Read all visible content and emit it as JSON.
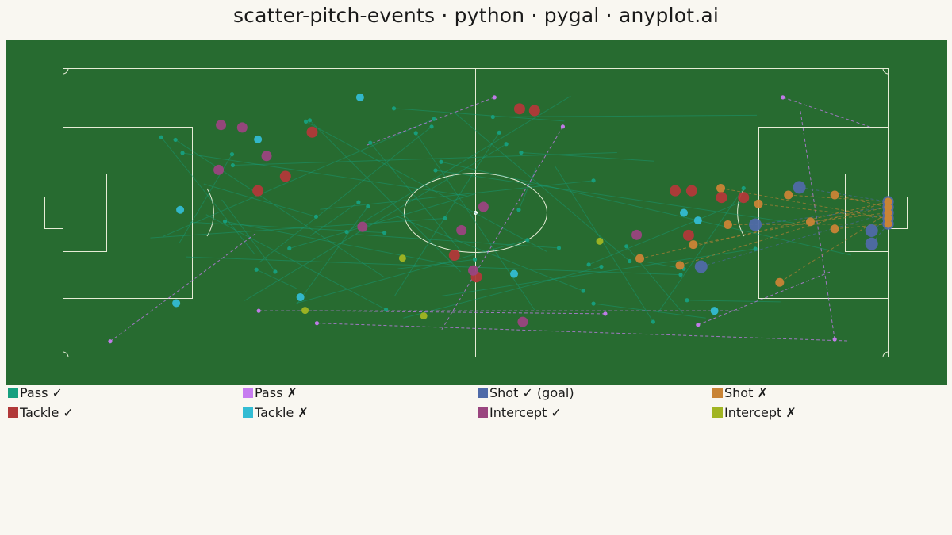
{
  "title": "scatter-pitch-events · python · pygal · anyplot.ai",
  "colors": {
    "background": "#f9f7f1",
    "pitch": "#276b30",
    "lines": "#e6ecd6"
  },
  "chart_data": {
    "type": "scatter",
    "title": "scatter-pitch-events · python · pygal · anyplot.ai",
    "xlim": [
      0,
      105
    ],
    "ylim": [
      0,
      68
    ],
    "pitch_markings": "full pitch, 105 x 68",
    "grid": false,
    "legend_placement": "bottom",
    "legend": [
      {
        "label": "Pass ✓",
        "color": "#17a07f"
      },
      {
        "label": "Pass ✗",
        "color": "#c77cf0"
      },
      {
        "label": "Shot ✓ (goal)",
        "color": "#4f6aa8"
      },
      {
        "label": "Shot ✗",
        "color": "#c98436"
      },
      {
        "label": "Tackle ✓",
        "color": "#b13939"
      },
      {
        "label": "Tackle ✗",
        "color": "#33bcd3"
      },
      {
        "label": "Intercept ✓",
        "color": "#9a457f"
      },
      {
        "label": "Intercept ✗",
        "color": "#a1b523"
      }
    ],
    "series": [
      {
        "name": "Pass ✓",
        "color": "#17a07f",
        "events": [
          [
            12.5,
            51.8,
            24.4,
            24.2
          ],
          [
            14.3,
            51.2,
            40.9,
            18.8
          ],
          [
            21.6,
            45.2,
            70.5,
            48.2
          ],
          [
            30.9,
            55.5,
            61.6,
            24.8
          ],
          [
            39.1,
            50.5,
            50.6,
            25.0
          ],
          [
            32.2,
            33.1,
            17.9,
            40.8
          ],
          [
            42.1,
            58.6,
            63.8,
            55.6
          ],
          [
            47.2,
            56.1,
            12.7,
            28.4
          ],
          [
            48.1,
            46.0,
            100.3,
            24.0
          ],
          [
            47.4,
            44.0,
            93.1,
            31.6
          ],
          [
            59.1,
            27.6,
            29.7,
            12.7
          ],
          [
            44.9,
            52.8,
            60.0,
            11.1
          ],
          [
            55.5,
            52.9,
            42.2,
            14.4
          ],
          [
            36.1,
            29.5,
            64.6,
            61.5
          ],
          [
            68.5,
            21.3,
            43.3,
            9.2
          ],
          [
            75.1,
            8.3,
            62.6,
            45.0
          ],
          [
            71.7,
            26.1,
            78.9,
            10.3
          ],
          [
            86.6,
            39.8,
            75.7,
            10.4
          ],
          [
            37.6,
            36.5,
            31.5,
            28.6
          ],
          [
            27.0,
            20.1,
            20.2,
            37.1
          ],
          [
            40.9,
            29.3,
            16.1,
            31.8
          ],
          [
            54.7,
            56.6,
            88.3,
            57.0
          ],
          [
            58.3,
            48.2,
            75.2,
            46.2
          ],
          [
            21.5,
            47.8,
            14.8,
            26.9
          ],
          [
            20.6,
            32.0,
            50.0,
            21.5
          ],
          [
            41.1,
            11.2,
            18.2,
            33.6
          ],
          [
            15.2,
            48.1,
            51.4,
            38.0
          ],
          [
            48.6,
            32.7,
            11.1,
            28.1
          ],
          [
            58.0,
            34.7,
            60.2,
            44.6
          ],
          [
            63.1,
            25.7,
            37.3,
            28.9
          ],
          [
            24.6,
            20.6,
            29.7,
            16.2
          ],
          [
            56.4,
            50.2,
            23.1,
            13.3
          ],
          [
            52.4,
            23.0,
            42.6,
            20.8
          ],
          [
            67.5,
            41.6,
            32.7,
            34.8
          ],
          [
            38.8,
            35.5,
            29.8,
            12.6
          ],
          [
            67.5,
            12.6,
            81.8,
            9.2
          ],
          [
            66.2,
            15.6,
            42.3,
            33.3
          ],
          [
            72.1,
            22.6,
            49.7,
            57.8
          ],
          [
            79.4,
            13.4,
            91.3,
            13.0
          ],
          [
            46.9,
            54.3,
            24.9,
            22.2
          ],
          [
            31.4,
            55.8,
            50.6,
            20.1
          ],
          [
            79.0,
            20.8,
            74.0,
            22.5
          ],
          [
            78.6,
            19.4,
            15.6,
            23.6
          ],
          [
            88.1,
            25.5,
            48.2,
            14.4
          ],
          [
            66.9,
            21.8,
            87.3,
            37.3
          ],
          [
            28.8,
            25.6,
            52.5,
            38.5
          ]
        ]
      },
      {
        "name": "Pass ✗",
        "color": "#c77cf0",
        "events": [
          [
            6.0,
            3.7,
            24.7,
            29.4
          ],
          [
            24.9,
            10.9,
            86.3,
            10.9
          ],
          [
            54.9,
            61.2,
            38.6,
            49.9
          ],
          [
            91.6,
            61.2,
            102.9,
            54.1
          ],
          [
            98.2,
            4.2,
            93.8,
            58.5
          ],
          [
            80.8,
            7.6,
            97.8,
            20.2
          ],
          [
            32.3,
            8.0,
            100.2,
            3.8
          ],
          [
            63.6,
            54.3,
            48.2,
            6.5
          ],
          [
            69.0,
            10.2,
            31.7,
            10.9
          ]
        ]
      },
      {
        "name": "Shot ✓ (goal)",
        "color": "#4f6aa8",
        "points": [
          [
            93.7,
            40.0
          ],
          [
            88.1,
            31.2
          ],
          [
            81.2,
            21.3
          ],
          [
            102.9,
            29.8
          ],
          [
            102.9,
            26.7
          ]
        ]
      },
      {
        "name": "Shot ✗",
        "color": "#c98436",
        "points": [
          [
            92.3,
            38.2
          ],
          [
            98.2,
            38.2
          ],
          [
            95.1,
            31.9
          ],
          [
            88.5,
            36.1
          ],
          [
            84.6,
            31.2
          ],
          [
            78.5,
            21.6
          ],
          [
            80.2,
            26.5
          ],
          [
            91.2,
            17.6
          ],
          [
            83.7,
            39.8
          ],
          [
            98.2,
            30.2
          ],
          [
            73.4,
            23.2
          ]
        ]
      },
      {
        "name": "Tackle ✓",
        "color": "#b13939",
        "points": [
          [
            60.0,
            58.1
          ],
          [
            31.7,
            53.0
          ],
          [
            28.3,
            42.6
          ],
          [
            24.8,
            39.2
          ],
          [
            58.1,
            58.5
          ],
          [
            77.9,
            39.2
          ],
          [
            80.0,
            39.2
          ],
          [
            83.8,
            37.6
          ],
          [
            86.6,
            37.6
          ],
          [
            79.6,
            28.7
          ],
          [
            49.8,
            24.0
          ],
          [
            52.6,
            18.9
          ]
        ]
      },
      {
        "name": "Tackle ✗",
        "color": "#33bcd3",
        "points": [
          [
            37.8,
            61.2
          ],
          [
            24.8,
            51.3
          ],
          [
            14.9,
            34.7
          ],
          [
            14.4,
            12.7
          ],
          [
            30.2,
            14.1
          ],
          [
            57.4,
            19.6
          ],
          [
            79.0,
            34.0
          ],
          [
            80.8,
            32.2
          ],
          [
            82.9,
            10.9
          ]
        ]
      },
      {
        "name": "Intercept ✓",
        "color": "#9a457f",
        "points": [
          [
            20.1,
            54.7
          ],
          [
            22.8,
            54.1
          ],
          [
            25.9,
            47.4
          ],
          [
            19.8,
            44.1
          ],
          [
            38.1,
            30.7
          ],
          [
            50.7,
            29.9
          ],
          [
            53.5,
            35.4
          ],
          [
            52.2,
            20.4
          ],
          [
            73.0,
            28.8
          ],
          [
            58.5,
            8.3
          ]
        ]
      },
      {
        "name": "Intercept ✗",
        "color": "#a1b523",
        "points": [
          [
            43.2,
            23.3
          ],
          [
            30.8,
            11.0
          ],
          [
            45.9,
            9.7
          ],
          [
            68.3,
            27.3
          ]
        ]
      }
    ]
  }
}
